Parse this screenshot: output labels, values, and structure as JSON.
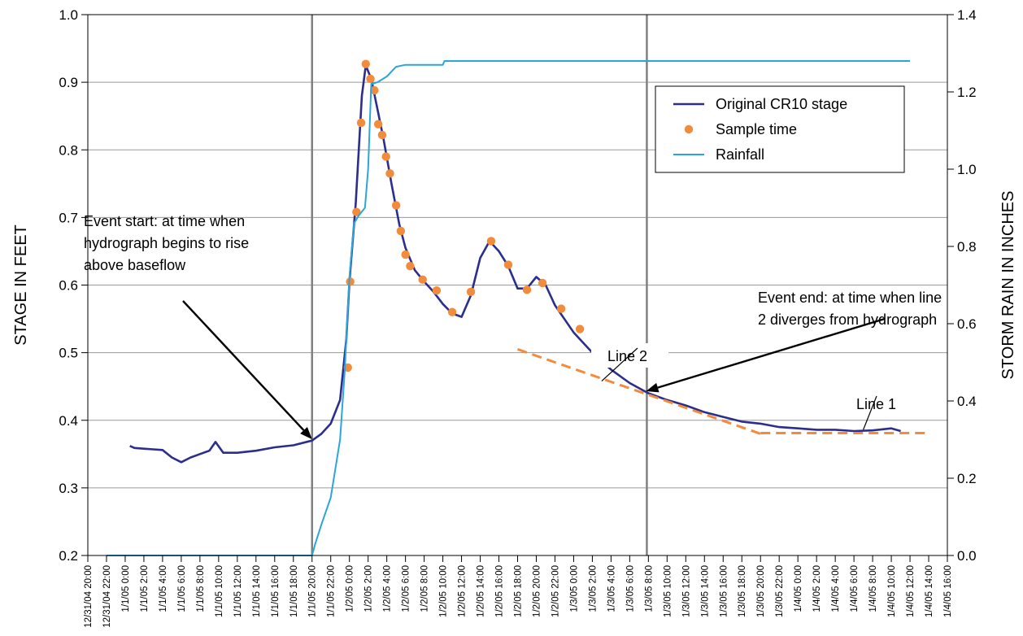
{
  "chart_data": {
    "type": "line",
    "y_left": {
      "label": "STAGE IN FEET",
      "min": 0.2,
      "max": 1.0,
      "ticks": [
        "0.2",
        "0.3",
        "0.4",
        "0.5",
        "0.6",
        "0.7",
        "0.8",
        "0.9",
        "1.0"
      ]
    },
    "y_right": {
      "label": "STORM RAIN IN INCHES",
      "min": 0.0,
      "max": 1.4,
      "ticks": [
        "0.0",
        "0.2",
        "0.4",
        "0.6",
        "0.8",
        "1.0",
        "1.2",
        "1.4"
      ]
    },
    "x": {
      "min": "12/31/04 20:00",
      "max": "1/4/05 16:00",
      "ticks": [
        "12/31/04 20:00",
        "12/31/04 22:00",
        "1/1/05 0:00",
        "1/1/05 2:00",
        "1/1/05 4:00",
        "1/1/05 6:00",
        "1/1/05 8:00",
        "1/1/05 10:00",
        "1/1/05 12:00",
        "1/1/05 14:00",
        "1/1/05 16:00",
        "1/1/05 18:00",
        "1/1/05 20:00",
        "1/1/05 22:00",
        "1/2/05 0:00",
        "1/2/05 2:00",
        "1/2/05 4:00",
        "1/2/05 6:00",
        "1/2/05 8:00",
        "1/2/05 10:00",
        "1/2/05 12:00",
        "1/2/05 14:00",
        "1/2/05 16:00",
        "1/2/05 18:00",
        "1/2/05 20:00",
        "1/2/05 22:00",
        "1/3/05 0:00",
        "1/3/05 2:00",
        "1/3/05 4:00",
        "1/3/05 6:00",
        "1/3/05 8:00",
        "1/3/05 10:00",
        "1/3/05 12:00",
        "1/3/05 14:00",
        "1/3/05 16:00",
        "1/3/05 18:00",
        "1/3/05 20:00",
        "1/3/05 22:00",
        "1/4/05 0:00",
        "1/4/05 2:00",
        "1/4/05 4:00",
        "1/4/05 6:00",
        "1/4/05 8:00",
        "1/4/05 10:00",
        "1/4/05 12:00",
        "1/4/05 14:00",
        "1/4/05 16:00"
      ]
    },
    "grid": "horizontal",
    "legend_position": "top-right",
    "series": [
      {
        "name": "Original CR10 stage",
        "axis": "left",
        "color": "#2b2e8c",
        "points": [
          [
            "1/1/05 0:30",
            0.362
          ],
          [
            "1/1/05 1:00",
            0.359
          ],
          [
            "1/1/05 2:00",
            0.358
          ],
          [
            "1/1/05 3:00",
            0.357
          ],
          [
            "1/1/05 4:00",
            0.356
          ],
          [
            "1/1/05 5:00",
            0.345
          ],
          [
            "1/1/05 6:00",
            0.338
          ],
          [
            "1/1/05 7:00",
            0.345
          ],
          [
            "1/1/05 8:00",
            0.35
          ],
          [
            "1/1/05 9:00",
            0.355
          ],
          [
            "1/1/05 9:40",
            0.368
          ],
          [
            "1/1/05 10:30",
            0.352
          ],
          [
            "1/1/05 12:00",
            0.352
          ],
          [
            "1/1/05 14:00",
            0.355
          ],
          [
            "1/1/05 16:00",
            0.36
          ],
          [
            "1/1/05 18:00",
            0.363
          ],
          [
            "1/1/05 20:00",
            0.37
          ],
          [
            "1/1/05 21:00",
            0.38
          ],
          [
            "1/1/05 22:00",
            0.395
          ],
          [
            "1/1/05 23:00",
            0.43
          ],
          [
            "1/1/05 23:40",
            0.52
          ],
          [
            "1/2/05 0:00",
            0.605
          ],
          [
            "1/2/05 0:40",
            0.72
          ],
          [
            "1/2/05 1:20",
            0.88
          ],
          [
            "1/2/05 1:45",
            0.925
          ],
          [
            "1/2/05 2:20",
            0.905
          ],
          [
            "1/2/05 3:00",
            0.86
          ],
          [
            "1/2/05 3:40",
            0.815
          ],
          [
            "1/2/05 4:30",
            0.75
          ],
          [
            "1/2/05 5:20",
            0.69
          ],
          [
            "1/2/05 6:00",
            0.655
          ],
          [
            "1/2/05 7:00",
            0.622
          ],
          [
            "1/2/05 8:00",
            0.605
          ],
          [
            "1/2/05 9:00",
            0.59
          ],
          [
            "1/2/05 10:00",
            0.572
          ],
          [
            "1/2/05 11:00",
            0.558
          ],
          [
            "1/2/05 12:00",
            0.553
          ],
          [
            "1/2/05 13:00",
            0.585
          ],
          [
            "1/2/05 14:00",
            0.64
          ],
          [
            "1/2/05 15:00",
            0.665
          ],
          [
            "1/2/05 16:00",
            0.65
          ],
          [
            "1/2/05 17:00",
            0.628
          ],
          [
            "1/2/05 18:00",
            0.595
          ],
          [
            "1/2/05 19:00",
            0.595
          ],
          [
            "1/2/05 20:00",
            0.612
          ],
          [
            "1/2/05 21:00",
            0.6
          ],
          [
            "1/2/05 22:00",
            0.57
          ],
          [
            "1/3/05 0:00",
            0.53
          ],
          [
            "1/3/05 2:00",
            0.5
          ],
          [
            "1/3/05 4:00",
            0.475
          ],
          [
            "1/3/05 6:00",
            0.455
          ],
          [
            "1/3/05 8:00",
            0.44
          ],
          [
            "1/3/05 10:00",
            0.43
          ],
          [
            "1/3/05 12:00",
            0.422
          ],
          [
            "1/3/05 14:00",
            0.412
          ],
          [
            "1/3/05 16:00",
            0.405
          ],
          [
            "1/3/05 18:00",
            0.398
          ],
          [
            "1/3/05 20:00",
            0.395
          ],
          [
            "1/3/05 22:00",
            0.39
          ],
          [
            "1/4/05 0:00",
            0.388
          ],
          [
            "1/4/05 2:00",
            0.386
          ],
          [
            "1/4/05 4:00",
            0.386
          ],
          [
            "1/4/05 6:00",
            0.384
          ],
          [
            "1/4/05 8:00",
            0.385
          ],
          [
            "1/4/05 10:00",
            0.388
          ],
          [
            "1/4/05 11:00",
            0.384
          ]
        ]
      },
      {
        "name": "Sample time",
        "axis": "left",
        "color": "#f28c3c",
        "points": [
          [
            "1/1/05 23:50",
            0.478
          ],
          [
            "1/2/05 0:05",
            0.605
          ],
          [
            "1/2/05 0:45",
            0.708
          ],
          [
            "1/2/05 1:15",
            0.84
          ],
          [
            "1/2/05 1:45",
            0.927
          ],
          [
            "1/2/05 2:15",
            0.905
          ],
          [
            "1/2/05 2:40",
            0.888
          ],
          [
            "1/2/05 3:05",
            0.838
          ],
          [
            "1/2/05 3:30",
            0.822
          ],
          [
            "1/2/05 3:55",
            0.79
          ],
          [
            "1/2/05 4:20",
            0.765
          ],
          [
            "1/2/05 5:00",
            0.718
          ],
          [
            "1/2/05 5:30",
            0.68
          ],
          [
            "1/2/05 6:00",
            0.645
          ],
          [
            "1/2/05 6:30",
            0.628
          ],
          [
            "1/2/05 7:50",
            0.608
          ],
          [
            "1/2/05 9:20",
            0.592
          ],
          [
            "1/2/05 11:00",
            0.56
          ],
          [
            "1/2/05 13:00",
            0.59
          ],
          [
            "1/2/05 15:10",
            0.665
          ],
          [
            "1/2/05 17:00",
            0.63
          ],
          [
            "1/2/05 19:00",
            0.593
          ],
          [
            "1/2/05 20:40",
            0.603
          ],
          [
            "1/2/05 22:40",
            0.565
          ],
          [
            "1/3/05 0:40",
            0.535
          ]
        ]
      },
      {
        "name": "Rainfall",
        "axis": "right",
        "color": "#2aa6dc",
        "points": [
          [
            "12/31/04 22:00",
            0.0
          ],
          [
            "1/1/05 20:00",
            0.0
          ],
          [
            "1/1/05 20:20",
            0.03
          ],
          [
            "1/1/05 21:00",
            0.08
          ],
          [
            "1/1/05 22:00",
            0.15
          ],
          [
            "1/1/05 23:00",
            0.3
          ],
          [
            "1/1/05 23:30",
            0.48
          ],
          [
            "1/2/05 0:00",
            0.72
          ],
          [
            "1/2/05 0:30",
            0.86
          ],
          [
            "1/2/05 1:00",
            0.88
          ],
          [
            "1/2/05 1:40",
            0.9
          ],
          [
            "1/2/05 2:00",
            1.0
          ],
          [
            "1/2/05 2:20",
            1.22
          ],
          [
            "1/2/05 3:00",
            1.225
          ],
          [
            "1/2/05 4:00",
            1.24
          ],
          [
            "1/2/05 5:00",
            1.265
          ],
          [
            "1/2/05 6:00",
            1.27
          ],
          [
            "1/2/05 10:00",
            1.27
          ],
          [
            "1/2/05 10:10",
            1.28
          ],
          [
            "1/4/05 12:00",
            1.28
          ]
        ]
      }
    ],
    "reference_lines": [
      {
        "name": "Line 2",
        "axis": "left",
        "style": "dashed",
        "color": "#f28c3c",
        "from": [
          "1/2/05 18:00",
          0.505
        ],
        "to": [
          "1/3/05 20:00",
          0.38
        ]
      },
      {
        "name": "Line 1",
        "axis": "left",
        "style": "dashed",
        "color": "#f28c3c",
        "from": [
          "1/3/05 20:00",
          0.381
        ],
        "to": [
          "1/4/05 14:00",
          0.381
        ]
      }
    ],
    "vertical_markers": [
      {
        "at": "1/1/05 20:00",
        "color": "#808080"
      },
      {
        "at": "1/3/05 7:50",
        "color": "#808080"
      }
    ],
    "annotations": [
      {
        "id": "event-start",
        "lines": [
          "Event start: at time when",
          "hydrograph begins to rise",
          "above baseflow"
        ],
        "points_to": [
          "1/1/05 20:00",
          0.372
        ]
      },
      {
        "id": "event-end",
        "lines": [
          "Event end: at time when line",
          "2 diverges from hydrograph"
        ],
        "points_to": [
          "1/3/05 7:45",
          0.443
        ]
      },
      {
        "id": "line-2-label",
        "lines": [
          "Line 2"
        ],
        "points_to": [
          "1/3/05 3:00",
          0.458
        ]
      },
      {
        "id": "line-1-label",
        "lines": [
          "Line 1"
        ],
        "points_to": [
          "1/4/05 7:00",
          0.386
        ]
      }
    ]
  }
}
